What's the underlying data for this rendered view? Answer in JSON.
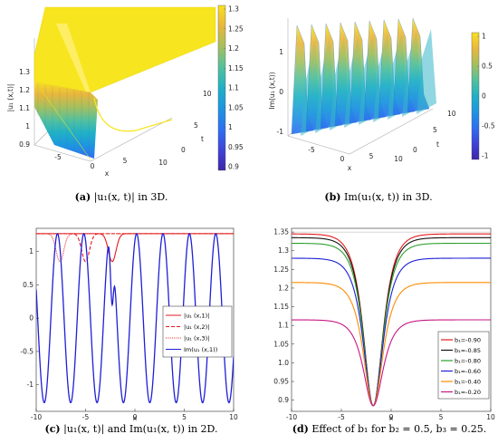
{
  "chart_data": [
    {
      "id": "a",
      "type": "surface3d",
      "caption_tag": "(a)",
      "caption_rest": " |u₁(x, t)| in 3D.",
      "zlabel": "|u₁ (x,t)|",
      "xlabel": "x",
      "ylabel": "t",
      "x_ticks": [
        "-5",
        "0",
        "5",
        "10"
      ],
      "t_ticks": [
        "0",
        "5",
        "10"
      ],
      "z_ticks": [
        "0.9",
        "1",
        "1.1",
        "1.2",
        "1.3"
      ],
      "colorbar_ticks": [
        "0.9",
        "0.95",
        "1",
        "1.05",
        "1.1",
        "1.15",
        "1.2",
        "1.25",
        "1.3"
      ],
      "colormap": [
        "#3e26a8",
        "#3f43d9",
        "#2e6ff2",
        "#1d95e0",
        "#1fb1c6",
        "#53c19c",
        "#a5c05e",
        "#e8b73c",
        "#f9e020"
      ]
    },
    {
      "id": "b",
      "type": "surface3d",
      "caption_tag": "(b)",
      "caption_rest": " Im(u₁(x, t)) in 3D.",
      "zlabel": "Im(u₁ (x,t))",
      "xlabel": "x",
      "ylabel": "t",
      "x_ticks": [
        "-5",
        "0",
        "5",
        "10"
      ],
      "t_ticks": [
        "0",
        "5",
        "10"
      ],
      "z_ticks": [
        "-1",
        "0",
        "1"
      ],
      "colorbar_ticks": [
        "-1",
        "-0.5",
        "0",
        "0.5",
        "1"
      ],
      "colormap": [
        "#3e26a8",
        "#3f43d9",
        "#2e6ff2",
        "#1d95e0",
        "#1fb1c6",
        "#53c19c",
        "#a5c05e",
        "#e8b73c",
        "#f9e020"
      ]
    },
    {
      "id": "c",
      "type": "line",
      "caption_tag": "(c)",
      "caption_rest": " |u₁(x, t)| and Im(u₁(x, t)) in 2D.",
      "xlabel": "x",
      "xlim": [
        -10,
        10
      ],
      "ylim": [
        -1.4,
        1.35
      ],
      "x_ticks": [
        -10,
        -5,
        0,
        5,
        10
      ],
      "y_ticks": [
        -1,
        -0.5,
        0,
        0.5,
        1
      ],
      "legend_position": "right",
      "series": [
        {
          "name": "|u₁ (x,1)|",
          "color": "#e41a1c",
          "dash": "solid",
          "dip_x": -2.3,
          "dip_depth": 0.42,
          "dip_width": 0.55
        },
        {
          "name": "|u₁ (x,2)|",
          "color": "#e41a1c",
          "dash": "dashed",
          "dip_x": -5.0,
          "dip_depth": 0.42,
          "dip_width": 0.55
        },
        {
          "name": "|u₁ (x,3)|",
          "color": "#e41a1c",
          "dash": "dotted",
          "dip_x": -7.6,
          "dip_depth": 0.42,
          "dip_width": 0.55
        },
        {
          "name": "Im(u₁ (x,1))",
          "color": "#1f1fd6",
          "dash": "solid"
        }
      ]
    },
    {
      "id": "d",
      "type": "line",
      "caption_tag": "(d)",
      "caption_rest": " Effect of b₁ for b₂ = 0.5, b₃ = 0.25.",
      "xlabel": "x",
      "xlim": [
        -10,
        10
      ],
      "ylim": [
        0.87,
        1.36
      ],
      "x_ticks": [
        -10,
        -5,
        0,
        5,
        10
      ],
      "y_ticks": [
        0.9,
        0.95,
        1,
        1.05,
        1.1,
        1.15,
        1.2,
        1.25,
        1.3,
        1.35
      ],
      "dip_x": -1.8,
      "dip_min": 0.885,
      "legend_position": "lower-right",
      "series": [
        {
          "name": "b₁=-0.90",
          "color": "#e41a1c",
          "plateau": 1.345
        },
        {
          "name": "b₁=-0.85",
          "color": "#111111",
          "plateau": 1.335
        },
        {
          "name": "b₁=-0.80",
          "color": "#2ca02c",
          "plateau": 1.32
        },
        {
          "name": "b₁=-0.60",
          "color": "#1f1fd6",
          "plateau": 1.28
        },
        {
          "name": "b₁=-0.40",
          "color": "#ff8c00",
          "plateau": 1.215
        },
        {
          "name": "b₁=-0.20",
          "color": "#c71585",
          "plateau": 1.115
        }
      ]
    }
  ]
}
